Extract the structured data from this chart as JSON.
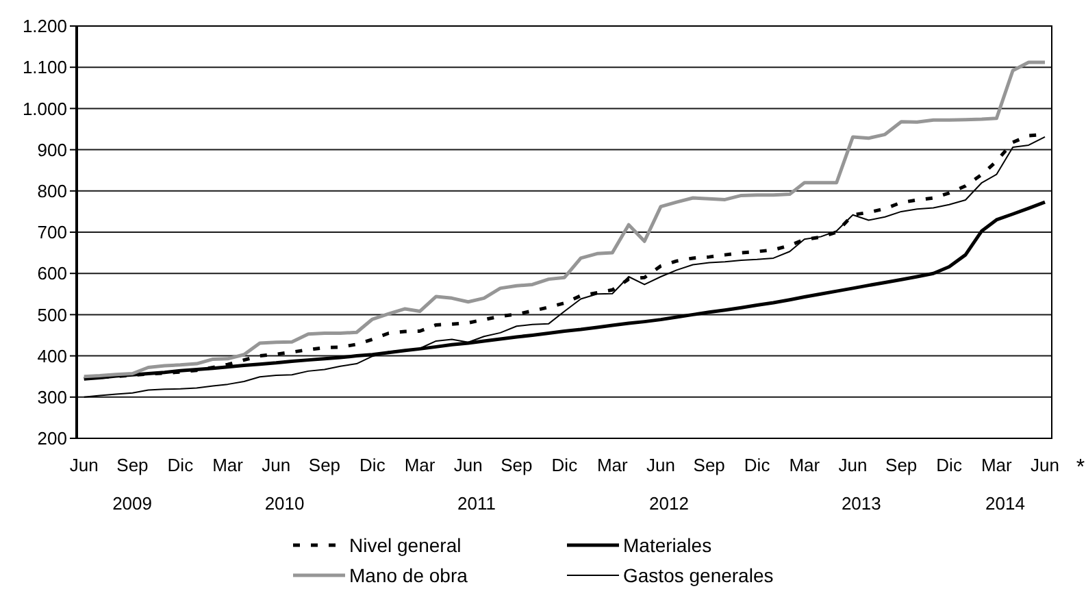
{
  "chart_data": {
    "type": "line",
    "x": [
      "2009-06",
      "2009-07",
      "2009-08",
      "2009-09",
      "2009-10",
      "2009-11",
      "2009-12",
      "2010-01",
      "2010-02",
      "2010-03",
      "2010-04",
      "2010-05",
      "2010-06",
      "2010-07",
      "2010-08",
      "2010-09",
      "2010-10",
      "2010-11",
      "2010-12",
      "2011-01",
      "2011-02",
      "2011-03",
      "2011-04",
      "2011-05",
      "2011-06",
      "2011-07",
      "2011-08",
      "2011-09",
      "2011-10",
      "2011-11",
      "2011-12",
      "2012-01",
      "2012-02",
      "2012-03",
      "2012-04",
      "2012-05",
      "2012-06",
      "2012-07",
      "2012-08",
      "2012-09",
      "2012-10",
      "2012-11",
      "2012-12",
      "2013-01",
      "2013-02",
      "2013-03",
      "2013-04",
      "2013-05",
      "2013-06",
      "2013-07",
      "2013-08",
      "2013-09",
      "2013-10",
      "2013-11",
      "2013-12",
      "2014-01",
      "2014-02",
      "2014-03",
      "2014-04",
      "2014-05",
      "2014-06"
    ],
    "xlim": [
      "2009-05-18",
      "2014-06-14"
    ],
    "xticks": [
      {
        "value": "2009-06",
        "label": "Jun"
      },
      {
        "value": "2009-09",
        "label": "Sep"
      },
      {
        "value": "2009-12",
        "label": "Dic"
      },
      {
        "value": "2010-03",
        "label": "Mar"
      },
      {
        "value": "2010-06",
        "label": "Jun"
      },
      {
        "value": "2010-09",
        "label": "Sep"
      },
      {
        "value": "2010-12",
        "label": "Dic"
      },
      {
        "value": "2011-03",
        "label": "Mar"
      },
      {
        "value": "2011-06",
        "label": "Jun"
      },
      {
        "value": "2011-09",
        "label": "Sep"
      },
      {
        "value": "2011-12",
        "label": "Dic"
      },
      {
        "value": "2012-03",
        "label": "Mar"
      },
      {
        "value": "2012-06",
        "label": "Jun"
      },
      {
        "value": "2012-09",
        "label": "Sep"
      },
      {
        "value": "2012-12",
        "label": "Dic"
      },
      {
        "value": "2013-03",
        "label": "Mar"
      },
      {
        "value": "2013-06",
        "label": "Jun"
      },
      {
        "value": "2013-09",
        "label": "Sep"
      },
      {
        "value": "2013-12",
        "label": "Dic"
      },
      {
        "value": "2014-03",
        "label": "Mar"
      },
      {
        "value": "2014-06",
        "label": "Jun"
      }
    ],
    "ylim": [
      200,
      1200
    ],
    "yticks": [
      200,
      300,
      400,
      500,
      600,
      700,
      800,
      900,
      {
        "value": 1000,
        "label": "1.000"
      },
      {
        "value": 1100,
        "label": "1.100"
      },
      {
        "value": 1200,
        "label": "1.200"
      }
    ],
    "grid": "y",
    "legend": "bottom",
    "annotations": [
      "2009",
      "2010",
      "2011",
      "2012",
      "2013",
      "2014",
      "*"
    ],
    "series": [
      {
        "name": "Nivel general",
        "color": "#000000",
        "line_style": "dashed",
        "values": [
          345,
          348,
          350,
          353,
          356,
          358,
          361,
          365,
          372,
          379,
          390,
          400,
          404,
          409,
          415,
          420,
          421,
          428,
          440,
          455,
          459,
          460,
          475,
          477,
          480,
          488,
          496,
          501,
          509,
          518,
          528,
          546,
          553,
          560,
          586,
          590,
          618,
          630,
          637,
          640,
          645,
          650,
          653,
          657,
          668,
          682,
          688,
          700,
          742,
          748,
          757,
          772,
          778,
          783,
          795,
          812,
          840,
          872,
          918,
          934,
          937
        ]
      },
      {
        "name": "Materiales",
        "color": "#000000",
        "line_style": "solid",
        "values": [
          344,
          347,
          351,
          354,
          357,
          360,
          364,
          367,
          370,
          373,
          377,
          380,
          383,
          387,
          390,
          393,
          396,
          400,
          403,
          408,
          413,
          417,
          422,
          427,
          431,
          436,
          441,
          446,
          450,
          455,
          460,
          464,
          469,
          474,
          479,
          483,
          488,
          494,
          500,
          506,
          511,
          517,
          523,
          529,
          536,
          543,
          550,
          557,
          564,
          571,
          578,
          585,
          592,
          600,
          616,
          645,
          703,
          730,
          744,
          758,
          773
        ]
      },
      {
        "name": "Mano de obra",
        "color": "#969696",
        "line_style": "solid",
        "values": [
          350,
          352,
          355,
          357,
          372,
          376,
          378,
          381,
          392,
          393,
          403,
          431,
          433,
          434,
          453,
          455,
          455,
          457,
          489,
          502,
          514,
          508,
          544,
          540,
          531,
          540,
          564,
          570,
          573,
          586,
          590,
          637,
          648,
          650,
          718,
          678,
          762,
          773,
          783,
          781,
          779,
          789,
          790,
          790,
          792,
          820,
          820,
          820,
          931,
          928,
          937,
          968,
          967,
          972,
          972,
          973,
          974,
          976,
          1092,
          1112,
          1112
        ]
      },
      {
        "name": "Gastos generales",
        "color": "#000000",
        "line_style": "solid",
        "values": [
          300,
          304,
          307,
          310,
          317,
          319,
          320,
          322,
          327,
          331,
          338,
          349,
          353,
          354,
          363,
          367,
          375,
          381,
          399,
          410,
          414,
          418,
          436,
          440,
          433,
          447,
          456,
          472,
          476,
          478,
          508,
          538,
          550,
          551,
          592,
          573,
          592,
          608,
          621,
          626,
          628,
          632,
          634,
          637,
          653,
          683,
          689,
          703,
          742,
          729,
          737,
          750,
          756,
          759,
          767,
          778,
          820,
          840,
          906,
          911,
          931
        ]
      }
    ]
  }
}
